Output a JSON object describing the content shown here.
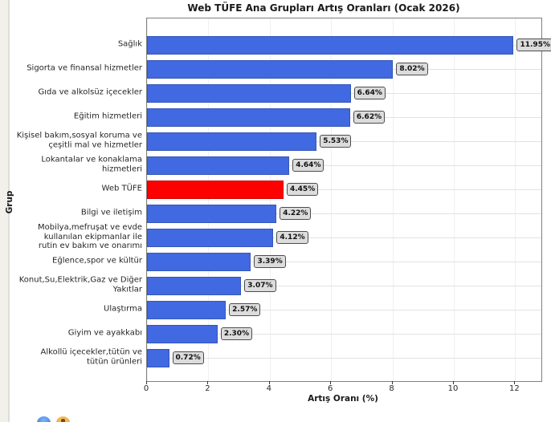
{
  "window": {
    "left_strip_color": "#f2f0ea",
    "bottom_icons": [
      "blue-circle-emoji",
      "orange-emoji"
    ]
  },
  "chart_data": {
    "type": "bar",
    "orientation": "horizontal",
    "title": "Web TÜFE Ana Grupları Artış Oranları (Ocak 2026)",
    "xlabel": "Artış Oranı (%)",
    "ylabel": "Grup",
    "xlim": [
      0,
      12.9
    ],
    "xticks": [
      0,
      2,
      4,
      6,
      8,
      10,
      12
    ],
    "grid": true,
    "legend": "none",
    "categories": [
      "Sağlık",
      "Sigorta ve finansal hizmetler",
      "Gıda ve alkolsüz içecekler",
      "Eğitim hizmetleri",
      "Kişisel bakım,sosyal koruma ve\nçeşitli mal ve hizmetler",
      "Lokantalar ve konaklama\nhizmetleri",
      "Web TÜFE",
      "Bilgi ve iletişim",
      "Mobilya,mefruşat ve evde\nkullanılan ekipmanlar ile\nrutin ev bakım ve onarımı",
      "Eğlence,spor ve kültür",
      "Konut,Su,Elektrik,Gaz ve Diğer\nYakıtlar",
      "Ulaştırma",
      "Giyim ve ayakkabı",
      "Alkollü içecekler,tütün ve\ntütün ürünleri"
    ],
    "values": [
      11.95,
      8.02,
      6.64,
      6.62,
      5.53,
      4.64,
      4.45,
      4.22,
      4.12,
      3.39,
      3.07,
      2.57,
      2.3,
      0.72
    ],
    "data_labels": [
      "11.95%",
      "8.02%",
      "6.64%",
      "6.62%",
      "5.53%",
      "4.64%",
      "4.45%",
      "4.22%",
      "4.12%",
      "3.39%",
      "3.07%",
      "2.57%",
      "2.30%",
      "0.72%"
    ],
    "highlight_category": "Web TÜFE",
    "highlight_index": 6,
    "colors": {
      "bar": "#4169e1",
      "highlight": "#ff0000",
      "label_box_bg": "#dcdcdc",
      "label_box_border": "#4d4d4d",
      "plot_border": "#7f7f7f",
      "grid_vertical": "#f0f0f0",
      "grid_horizontal": "#e2e2e2"
    }
  }
}
